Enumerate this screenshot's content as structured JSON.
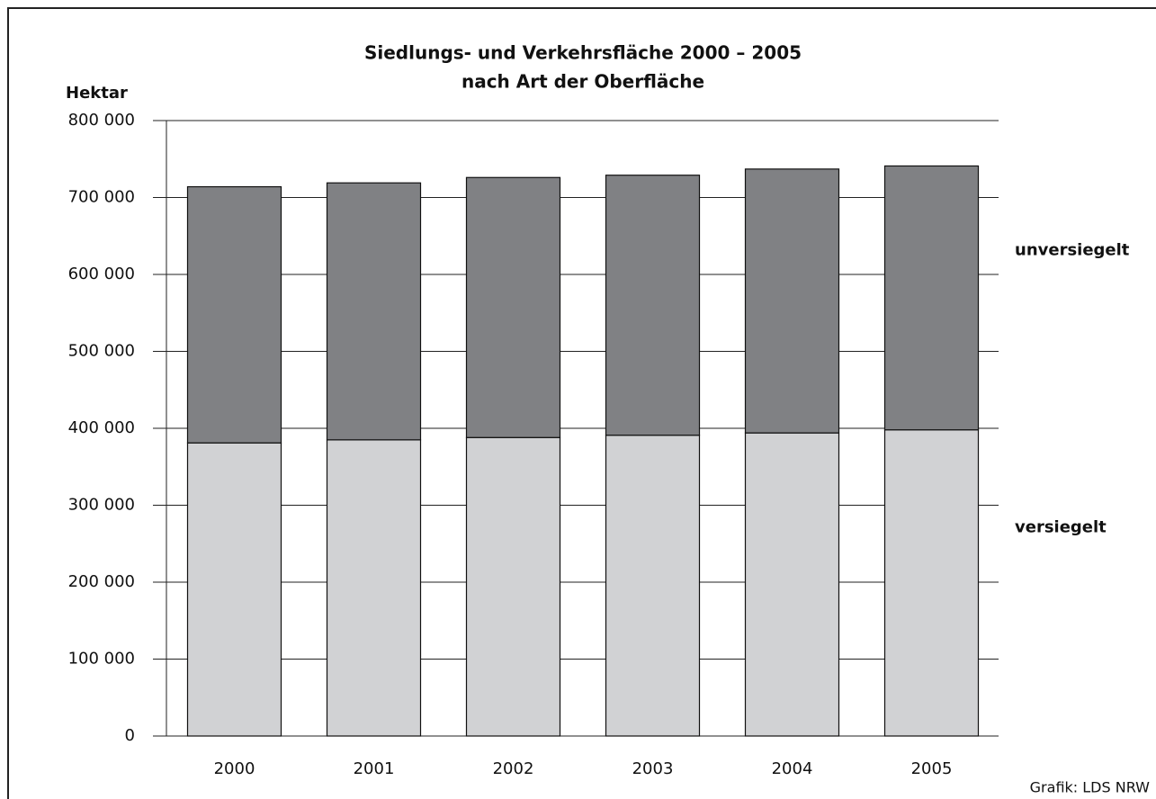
{
  "chart_data": {
    "type": "stacked_bar",
    "title": "Siedlungs- und Verkehrsfläche 2000 – 2005",
    "subtitle": "nach Art der Oberfläche",
    "y_label": "Hektar",
    "source": "Grafik: LDS NRW",
    "categories": [
      "2000",
      "2001",
      "2002",
      "2003",
      "2004",
      "2005"
    ],
    "series": [
      {
        "name": "versiegelt",
        "color": "#d1d2d4",
        "values": [
          381000,
          385000,
          388000,
          391000,
          394000,
          398000
        ]
      },
      {
        "name": "unversiegelt",
        "color": "#808184",
        "values": [
          333000,
          334000,
          338000,
          338000,
          343000,
          343000
        ]
      }
    ],
    "ylim": [
      0,
      800000
    ],
    "yticks": [
      0,
      {
        "value": 100000,
        "label": "100 000"
      },
      {
        "value": 200000,
        "label": "200 000"
      },
      {
        "value": 300000,
        "label": "300 000"
      },
      {
        "value": 400000,
        "label": "400 000"
      },
      {
        "value": 500000,
        "label": "500 000"
      },
      {
        "value": 600000,
        "label": "600 000"
      },
      {
        "value": 700000,
        "label": "700 000"
      },
      {
        "value": 800000,
        "label": "800 000"
      }
    ],
    "grid": true,
    "legend": "right"
  }
}
